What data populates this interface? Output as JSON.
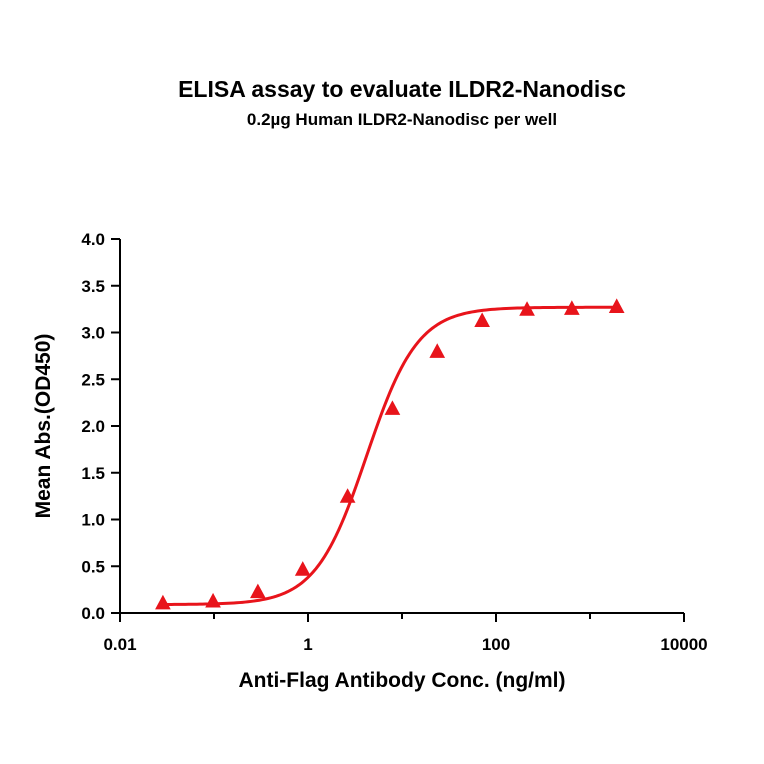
{
  "chart_data": {
    "type": "scatter",
    "title": "ELISA assay to evaluate ILDR2-Nanodisc",
    "subtitle": "0.2µg Human ILDR2-Nanodisc per well",
    "xlabel": "Anti-Flag Antibody Conc. (ng/ml)",
    "ylabel": "Mean Abs.(OD450)",
    "xscale": "log",
    "xlim": [
      0.01,
      10000
    ],
    "ylim": [
      0,
      4.0
    ],
    "x_ticks": [
      0.01,
      1,
      100,
      10000
    ],
    "x_tick_labels": [
      "0.01",
      "1",
      "100",
      "10000"
    ],
    "y_ticks": [
      0,
      0.5,
      1.0,
      1.5,
      2.0,
      2.5,
      3.0,
      3.5,
      4.0
    ],
    "y_tick_labels": [
      "0.0",
      "0.5",
      "1.0",
      "1.5",
      "2.0",
      "2.5",
      "3.0",
      "3.5",
      "4.0"
    ],
    "grid": false,
    "marker": "triangle",
    "color": "#e8141b",
    "series": [
      {
        "x": [
          0.0286,
          0.0977,
          0.293,
          0.879,
          2.64,
          7.91,
          23.7,
          71.2,
          214,
          641,
          1923
        ],
        "y": [
          0.1,
          0.12,
          0.22,
          0.46,
          1.24,
          2.18,
          2.79,
          3.12,
          3.24,
          3.25,
          3.27
        ]
      }
    ],
    "fit_curve": {
      "model": "4PL",
      "bottom": 0.09,
      "top": 3.27,
      "ec50": 4.2,
      "hill": 1.6
    }
  }
}
